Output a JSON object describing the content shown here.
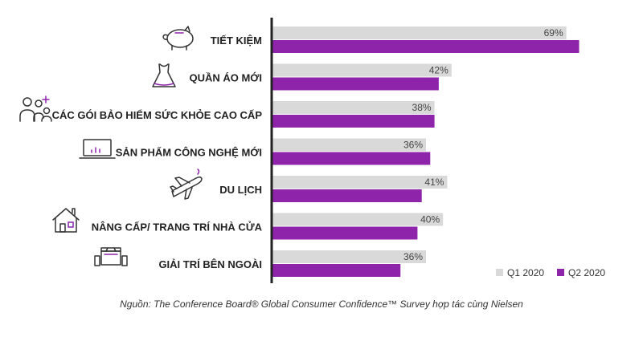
{
  "chart_data": {
    "type": "bar",
    "orientation": "horizontal",
    "categories": [
      "TIẾT KIỆM",
      "QUẦN ÁO MỚI",
      "CÁC GÓI BẢO HIỂM SỨC KHỎE CAO CẤP",
      "SẢN PHẨM CÔNG NGHỆ MỚI",
      "DU LỊCH",
      "NÂNG CẤP/ TRANG TRÍ NHÀ CỬA",
      "GIẢI TRÍ BÊN NGOÀI"
    ],
    "series": [
      {
        "name": "Q1 2020",
        "values": [
          69,
          42,
          38,
          36,
          41,
          40,
          36
        ],
        "color": "#d9d9d9"
      },
      {
        "name": "Q2 2020",
        "values": [
          72,
          39,
          38,
          37,
          35,
          34,
          30
        ],
        "color": "#8e24aa"
      }
    ],
    "value_suffix": "%",
    "xlim": [
      0,
      100
    ],
    "grid": false,
    "legend_position": "bottom-right",
    "icons": [
      "piggy-bank-icon",
      "dress-icon",
      "family-plus-icon",
      "laptop-chart-icon",
      "airplane-icon",
      "house-icon",
      "tv-speakers-icon"
    ]
  },
  "source_note": "Nguồn: The Conference Board® Global Consumer Confidence™ Survey hợp tác cùng Nielsen"
}
